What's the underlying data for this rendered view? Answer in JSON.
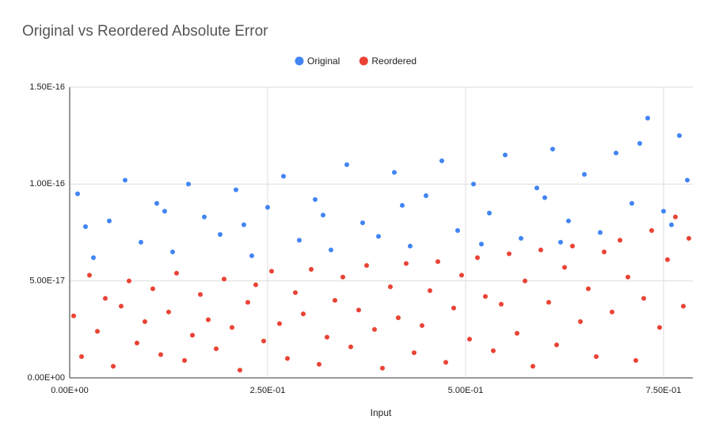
{
  "chart_data": {
    "type": "scatter",
    "title": "Original vs Reordered Absolute Error",
    "x_label": "Input",
    "xlim": [
      0,
      0.787
    ],
    "ylim": [
      0,
      1.5e-16
    ],
    "xticks": [
      {
        "value": 0,
        "label": "0.00E+00"
      },
      {
        "value": 0.25,
        "label": "2.50E-01"
      },
      {
        "value": 0.5,
        "label": "5.00E-01"
      },
      {
        "value": 0.75,
        "label": "7.50E-01"
      }
    ],
    "yticks": [
      {
        "value": 0,
        "label": "0.00E+00"
      },
      {
        "value": 5e-17,
        "label": "5.00E-17"
      },
      {
        "value": 1e-16,
        "label": "1.00E-16"
      },
      {
        "value": 1.5e-16,
        "label": "1.50E-16"
      }
    ],
    "grid": true,
    "legend": "top",
    "series": [
      {
        "name": "Original",
        "color": "#4285f4",
        "x": [
          0.01,
          0.02,
          0.03,
          0.05,
          0.07,
          0.09,
          0.11,
          0.12,
          0.13,
          0.15,
          0.17,
          0.19,
          0.21,
          0.22,
          0.23,
          0.25,
          0.27,
          0.29,
          0.31,
          0.32,
          0.33,
          0.35,
          0.37,
          0.39,
          0.41,
          0.42,
          0.43,
          0.45,
          0.47,
          0.49,
          0.51,
          0.52,
          0.53,
          0.55,
          0.57,
          0.59,
          0.6,
          0.61,
          0.62,
          0.63,
          0.65,
          0.67,
          0.69,
          0.71,
          0.72,
          0.73,
          0.75,
          0.76,
          0.77,
          0.78
        ],
        "values": [
          9.5e-17,
          7.8e-17,
          6.2e-17,
          8.1e-17,
          1.02e-16,
          7e-17,
          9e-17,
          8.6e-17,
          6.5e-17,
          1e-16,
          8.3e-17,
          7.4e-17,
          9.7e-17,
          7.9e-17,
          6.3e-17,
          8.8e-17,
          1.04e-16,
          7.1e-17,
          9.2e-17,
          8.4e-17,
          6.6e-17,
          1.1e-16,
          8e-17,
          7.3e-17,
          1.06e-16,
          8.9e-17,
          6.8e-17,
          9.4e-17,
          1.12e-16,
          7.6e-17,
          1e-16,
          6.9e-17,
          8.5e-17,
          1.15e-16,
          7.2e-17,
          9.8e-17,
          9.3e-17,
          1.18e-16,
          7e-17,
          8.1e-17,
          1.05e-16,
          7.5e-17,
          1.16e-16,
          9e-17,
          1.21e-16,
          1.34e-16,
          8.6e-17,
          7.9e-17,
          1.25e-16,
          1.02e-16
        ]
      },
      {
        "name": "Reordered",
        "color": "#ea4335",
        "x": [
          0.005,
          0.015,
          0.025,
          0.035,
          0.045,
          0.055,
          0.065,
          0.075,
          0.085,
          0.095,
          0.105,
          0.115,
          0.125,
          0.135,
          0.145,
          0.155,
          0.165,
          0.175,
          0.185,
          0.195,
          0.205,
          0.215,
          0.225,
          0.235,
          0.245,
          0.255,
          0.265,
          0.275,
          0.285,
          0.295,
          0.305,
          0.315,
          0.325,
          0.335,
          0.345,
          0.355,
          0.365,
          0.375,
          0.385,
          0.395,
          0.405,
          0.415,
          0.425,
          0.435,
          0.445,
          0.455,
          0.465,
          0.475,
          0.485,
          0.495,
          0.505,
          0.515,
          0.525,
          0.535,
          0.545,
          0.555,
          0.565,
          0.575,
          0.585,
          0.595,
          0.605,
          0.615,
          0.625,
          0.635,
          0.645,
          0.655,
          0.665,
          0.675,
          0.685,
          0.695,
          0.705,
          0.715,
          0.725,
          0.735,
          0.745,
          0.755,
          0.765,
          0.775,
          0.782
        ],
        "values": [
          3.2e-17,
          1.1e-17,
          5.3e-17,
          2.4e-17,
          4.1e-17,
          6e-18,
          3.7e-17,
          5e-17,
          1.8e-17,
          2.9e-17,
          4.6e-17,
          1.2e-17,
          3.4e-17,
          5.4e-17,
          9e-18,
          2.2e-17,
          4.3e-17,
          3e-17,
          1.5e-17,
          5.1e-17,
          2.6e-17,
          4e-18,
          3.9e-17,
          4.8e-17,
          1.9e-17,
          5.5e-17,
          2.8e-17,
          1e-17,
          4.4e-17,
          3.3e-17,
          5.6e-17,
          7e-18,
          2.1e-17,
          4e-17,
          5.2e-17,
          1.6e-17,
          3.5e-17,
          5.8e-17,
          2.5e-17,
          5e-18,
          4.7e-17,
          3.1e-17,
          5.9e-17,
          1.3e-17,
          2.7e-17,
          4.5e-17,
          6e-17,
          8e-18,
          3.6e-17,
          5.3e-17,
          2e-17,
          6.2e-17,
          4.2e-17,
          1.4e-17,
          3.8e-17,
          6.4e-17,
          2.3e-17,
          5e-17,
          6e-18,
          6.6e-17,
          3.9e-17,
          1.7e-17,
          5.7e-17,
          6.8e-17,
          2.9e-17,
          4.6e-17,
          1.1e-17,
          6.5e-17,
          3.4e-17,
          7.1e-17,
          5.2e-17,
          9e-18,
          4.1e-17,
          7.6e-17,
          2.6e-17,
          6.1e-17,
          8.3e-17,
          3.7e-17,
          7.2e-17
        ]
      }
    ]
  }
}
